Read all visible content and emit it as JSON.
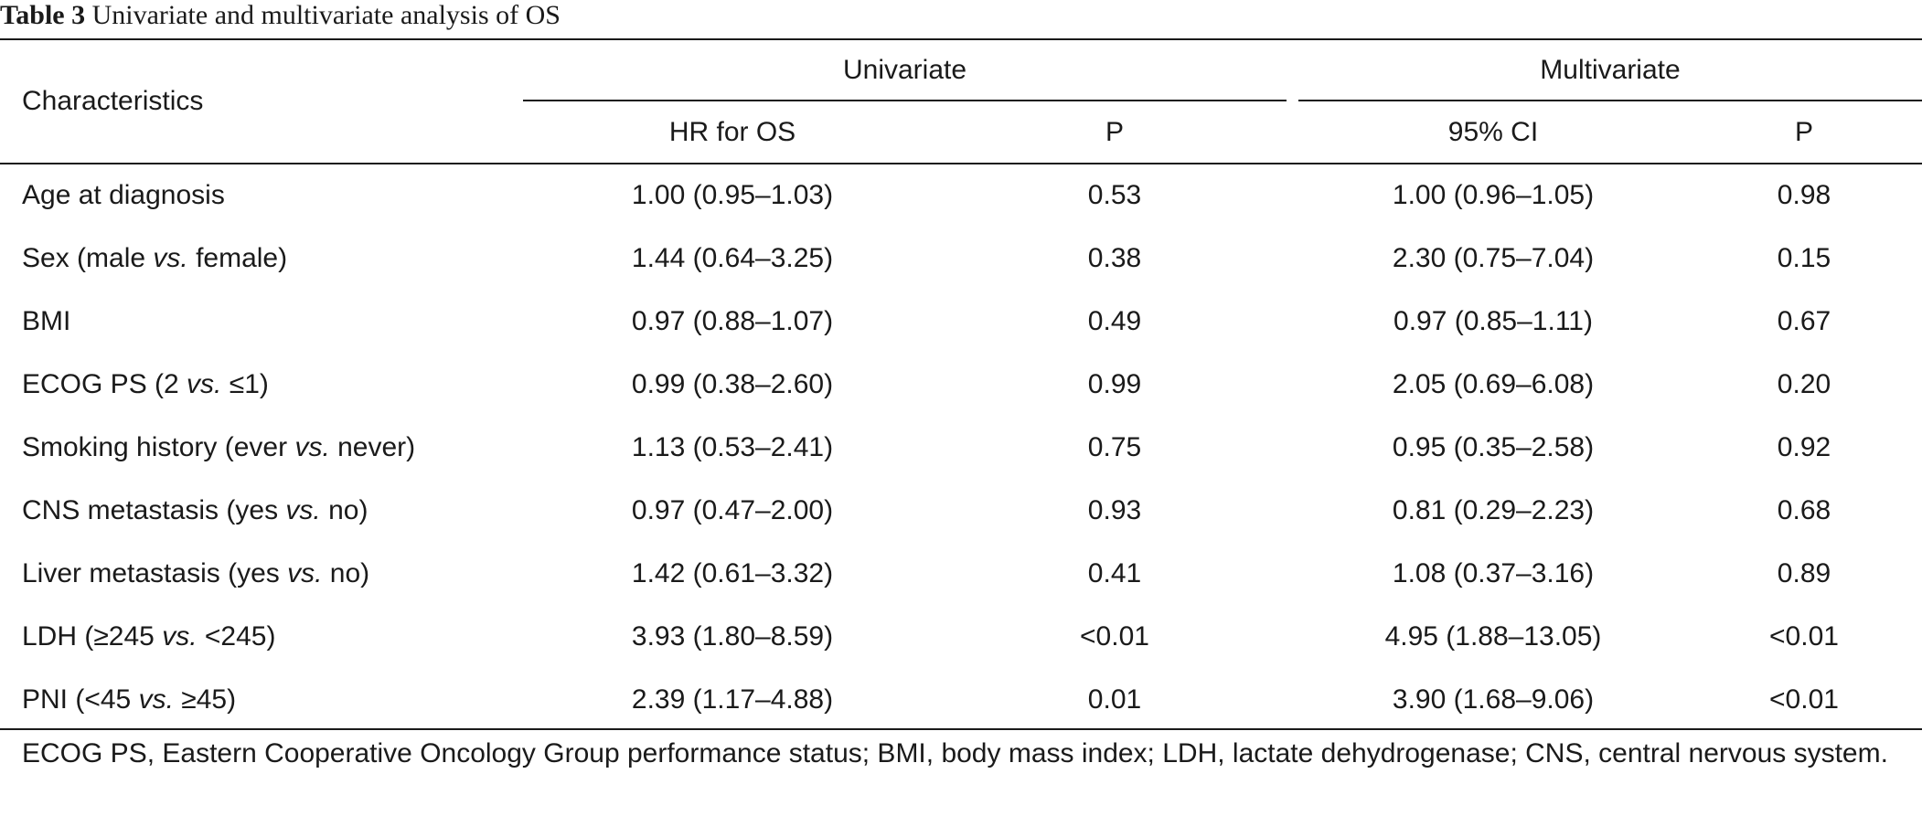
{
  "caption": {
    "label": "Table 3",
    "text": "Univariate and multivariate analysis of OS"
  },
  "header": {
    "characteristics": "Characteristics",
    "univariate": "Univariate",
    "multivariate": "Multivariate",
    "uni_hr": "HR for OS",
    "uni_p": "P",
    "multi_ci": "95% CI",
    "multi_p": "P"
  },
  "rows": [
    {
      "pre": "Age at diagnosis",
      "vs": "",
      "post": "",
      "uni_hr": "1.00 (0.95–1.03)",
      "uni_p": "0.53",
      "multi_ci": "1.00 (0.96–1.05)",
      "multi_p": "0.98"
    },
    {
      "pre": "Sex (male ",
      "vs": "vs.",
      "post": " female)",
      "uni_hr": "1.44 (0.64–3.25)",
      "uni_p": "0.38",
      "multi_ci": "2.30 (0.75–7.04)",
      "multi_p": "0.15"
    },
    {
      "pre": "BMI",
      "vs": "",
      "post": "",
      "uni_hr": "0.97 (0.88–1.07)",
      "uni_p": "0.49",
      "multi_ci": "0.97 (0.85–1.11)",
      "multi_p": "0.67"
    },
    {
      "pre": "ECOG PS (2 ",
      "vs": "vs.",
      "post": " ≤1)",
      "uni_hr": "0.99 (0.38–2.60)",
      "uni_p": "0.99",
      "multi_ci": "2.05 (0.69–6.08)",
      "multi_p": "0.20"
    },
    {
      "pre": "Smoking history (ever ",
      "vs": "vs.",
      "post": " never)",
      "uni_hr": "1.13 (0.53–2.41)",
      "uni_p": "0.75",
      "multi_ci": "0.95 (0.35–2.58)",
      "multi_p": "0.92"
    },
    {
      "pre": "CNS metastasis (yes ",
      "vs": "vs.",
      "post": " no)",
      "uni_hr": "0.97 (0.47–2.00)",
      "uni_p": "0.93",
      "multi_ci": "0.81 (0.29–2.23)",
      "multi_p": "0.68"
    },
    {
      "pre": "Liver metastasis (yes ",
      "vs": "vs.",
      "post": " no)",
      "uni_hr": "1.42 (0.61–3.32)",
      "uni_p": "0.41",
      "multi_ci": "1.08 (0.37–3.16)",
      "multi_p": "0.89"
    },
    {
      "pre": "LDH (≥245 ",
      "vs": "vs.",
      "post": " <245)",
      "uni_hr": "3.93 (1.80–8.59)",
      "uni_p": "<0.01",
      "multi_ci": "4.95 (1.88–13.05)",
      "multi_p": "<0.01"
    },
    {
      "pre": "PNI (<45 ",
      "vs": "vs.",
      "post": " ≥45)",
      "uni_hr": "2.39 (1.17–4.88)",
      "uni_p": "0.01",
      "multi_ci": "3.90 (1.68–9.06)",
      "multi_p": "<0.01"
    }
  ],
  "footnote": "ECOG PS, Eastern Cooperative Oncology Group performance status; BMI, body mass index; LDH, lactate dehydrogenase; CNS, central nervous system."
}
